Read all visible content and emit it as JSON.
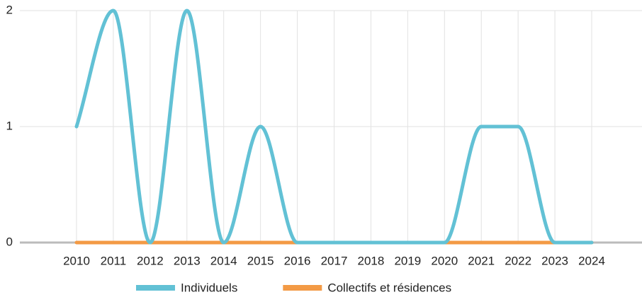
{
  "chart_data": {
    "type": "line",
    "categories": [
      "2010",
      "2011",
      "2012",
      "2013",
      "2014",
      "2015",
      "2016",
      "2017",
      "2018",
      "2019",
      "2020",
      "2021",
      "2022",
      "2023",
      "2024"
    ],
    "series": [
      {
        "name": "Individuels",
        "color": "#62c1d5",
        "values": [
          1,
          2,
          0,
          2,
          0,
          1,
          0,
          0,
          0,
          0,
          0,
          1,
          1,
          0,
          0
        ]
      },
      {
        "name": "Collectifs et résidences",
        "color": "#f39a45",
        "values": [
          0,
          0,
          0,
          0,
          0,
          0,
          0,
          0,
          0,
          0,
          0,
          0,
          0,
          0,
          0
        ]
      }
    ],
    "ylim": [
      0,
      2
    ],
    "yticks": [
      0,
      1,
      2
    ],
    "grid": true,
    "legend": "bottom"
  }
}
